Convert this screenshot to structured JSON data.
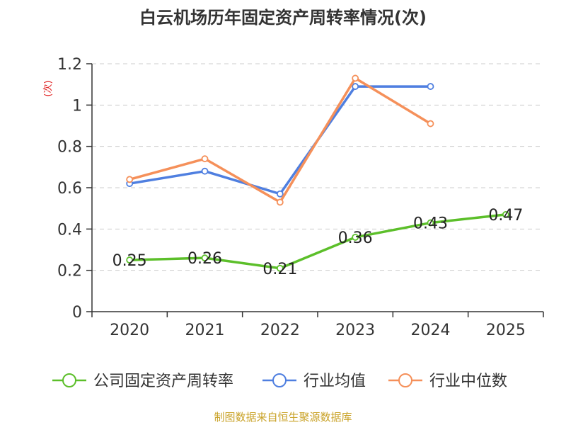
{
  "chart_data": {
    "type": "line",
    "title": "白云机场历年固定资产周转率情况(次)",
    "ylabel": "(次)",
    "xlabel": "",
    "categories": [
      "2020",
      "2021",
      "2022",
      "2023",
      "2024",
      "2025"
    ],
    "yticks": [
      "0",
      "0.2",
      "0.4",
      "0.6",
      "0.8",
      "1",
      "1.2"
    ],
    "ylim": [
      0,
      1.2
    ],
    "grid": true,
    "legend_position": "bottom",
    "series": [
      {
        "name": "公司固定资产周转率",
        "color": "#5cbf2a",
        "values": [
          0.25,
          0.26,
          0.21,
          0.36,
          0.43,
          0.47
        ],
        "labels": [
          "0.25",
          "0.26",
          "0.21",
          "0.36",
          "0.43",
          "0.47"
        ]
      },
      {
        "name": "行业均值",
        "color": "#4f7fe0",
        "values": [
          0.62,
          0.68,
          0.57,
          1.09,
          1.09,
          null
        ]
      },
      {
        "name": "行业中位数",
        "color": "#f5905a",
        "values": [
          0.64,
          0.74,
          0.53,
          1.13,
          0.91,
          null
        ]
      }
    ],
    "source": "制图数据来自恒生聚源数据库"
  }
}
